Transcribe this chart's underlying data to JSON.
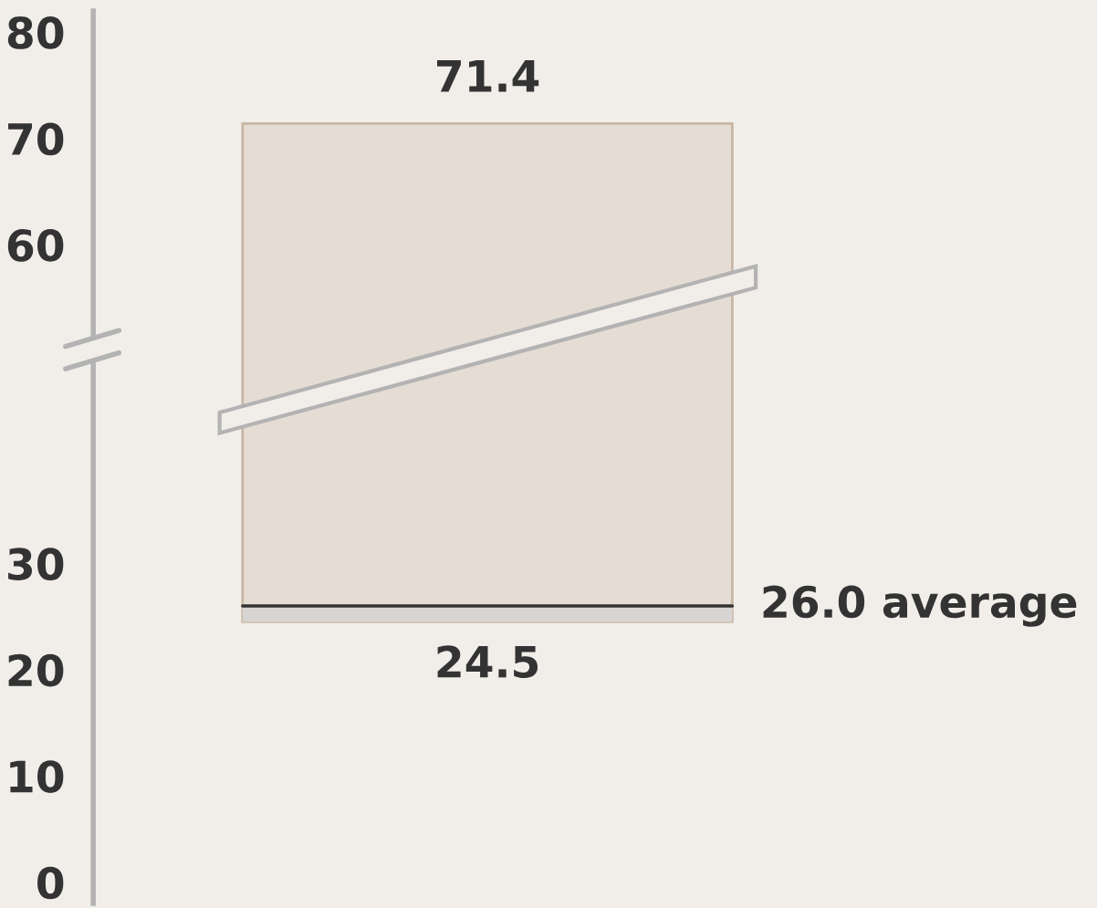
{
  "chart_data": {
    "type": "bar",
    "categories": [
      null
    ],
    "base": [
      24.5
    ],
    "values": [
      46.9
    ],
    "color": "#c9b6a3",
    "ylim": [
      -2,
      82
    ],
    "yticks": [
      0,
      10,
      20,
      30,
      60,
      70,
      80
    ],
    "grid": false,
    "ref_lines": [
      {
        "axis": "y",
        "value": 26.0,
        "label": "26.0 average",
        "color": "#333333"
      }
    ],
    "bands": [
      {
        "axis": "y",
        "from": 24.5,
        "to": 26.0,
        "color": "#d7d5d3"
      }
    ],
    "annotations": [
      {
        "text": "71.4",
        "y": 71.4
      },
      {
        "text": "24.5",
        "y": 24.5
      }
    ]
  }
}
